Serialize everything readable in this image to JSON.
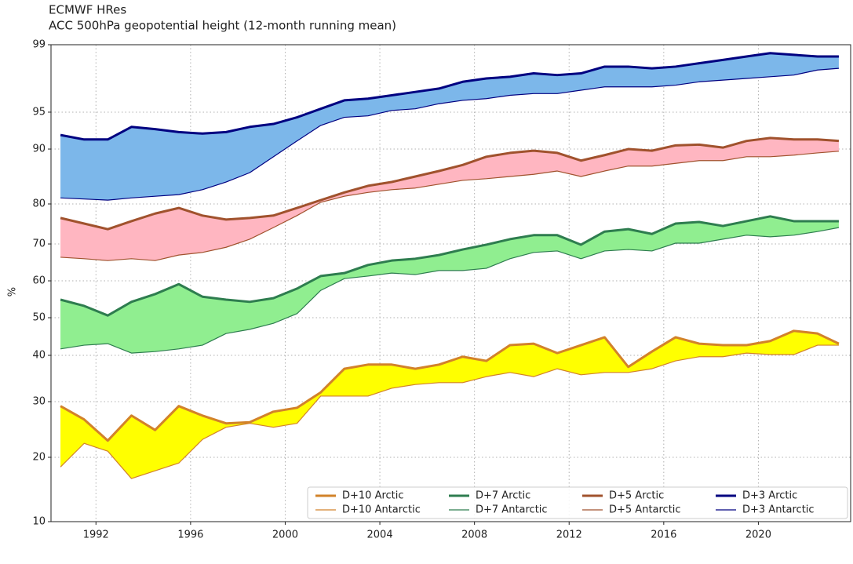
{
  "chart_data": {
    "type": "line",
    "title": "ECMWF HRes",
    "subtitle": "ACC 500hPa geopotential height (12-month running mean)",
    "y_label": "%",
    "x": [
      1990.5,
      1991.5,
      1992.5,
      1993.5,
      1994.5,
      1995.5,
      1996.5,
      1997.5,
      1998.5,
      1999.5,
      2000.5,
      2001.5,
      2002.5,
      2003.5,
      2004.5,
      2005.5,
      2006.5,
      2007.5,
      2008.5,
      2009.5,
      2010.5,
      2011.5,
      2012.5,
      2013.5,
      2014.5,
      2015.5,
      2016.5,
      2017.5,
      2018.5,
      2019.5,
      2020.5,
      2021.5,
      2022.5,
      2023.4
    ],
    "xlim": [
      1990.1,
      2023.9
    ],
    "xticks": [
      1992,
      1996,
      2000,
      2004,
      2008,
      2012,
      2016,
      2020
    ],
    "ylim": [
      10,
      99
    ],
    "yticks": [
      10,
      20,
      30,
      40,
      50,
      60,
      70,
      80,
      90,
      95,
      99
    ],
    "yscale": "nonlinear",
    "grid": true,
    "legend": "lower right",
    "series": [
      {
        "name": "D+10 Arctic",
        "color": "#d2822a",
        "fill": "#ffff00",
        "width": 3,
        "values": [
          29.2,
          26.8,
          23.0,
          27.5,
          24.9,
          29.2,
          27.5,
          26.1,
          26.3,
          28.2,
          28.9,
          32.0,
          37.1,
          38.0,
          38.0,
          37.1,
          38.0,
          39.7,
          38.8,
          42.7,
          43.1,
          40.6,
          42.7,
          44.8,
          37.5,
          41.0,
          44.8,
          43.1,
          42.7,
          42.7,
          43.8,
          46.5,
          45.8,
          43.1
        ]
      },
      {
        "name": "D+10 Antarctic",
        "color": "#d2822a",
        "width": 1.2,
        "values": [
          18.5,
          22.5,
          21.1,
          16.7,
          17.9,
          19.1,
          23.2,
          25.4,
          26.1,
          25.4,
          26.1,
          31.2,
          31.2,
          31.2,
          32.9,
          33.7,
          34.1,
          34.1,
          35.4,
          36.3,
          35.4,
          37.1,
          35.8,
          36.3,
          36.3,
          37.1,
          38.8,
          39.7,
          39.7,
          40.6,
          40.2,
          40.2,
          42.7,
          42.7
        ]
      },
      {
        "name": "D+7 Arctic",
        "color": "#2e7d4f",
        "fill": "#90ee90",
        "width": 3,
        "values": [
          54.9,
          53.2,
          50.6,
          54.3,
          56.4,
          59.1,
          55.7,
          54.9,
          54.3,
          55.3,
          57.9,
          61.3,
          62.1,
          64.3,
          65.5,
          66.0,
          67.0,
          68.5,
          69.8,
          71.2,
          72.2,
          72.2,
          69.8,
          73.1,
          73.7,
          72.5,
          75.1,
          75.5,
          74.5,
          75.7,
          76.9,
          75.7,
          75.7,
          75.7
        ]
      },
      {
        "name": "D+7 Antarctic",
        "color": "#2e7d4f",
        "width": 1.2,
        "values": [
          41.7,
          42.7,
          43.1,
          40.6,
          41.0,
          41.7,
          42.7,
          45.8,
          46.9,
          48.5,
          51.1,
          57.4,
          60.6,
          61.3,
          62.1,
          61.7,
          62.8,
          62.8,
          63.4,
          66.0,
          67.7,
          68.1,
          66.0,
          68.1,
          68.5,
          68.1,
          70.2,
          70.2,
          71.2,
          72.2,
          71.8,
          72.2,
          73.1,
          74.1
        ]
      },
      {
        "name": "D+5 Arctic",
        "color": "#a0522d",
        "fill": "#ffb6c1",
        "width": 3,
        "values": [
          76.5,
          75.1,
          73.7,
          75.7,
          77.6,
          79.0,
          77.1,
          76.1,
          76.5,
          77.1,
          79.0,
          80.7,
          82.1,
          83.3,
          84.0,
          85.0,
          86.0,
          87.1,
          88.6,
          89.3,
          89.7,
          89.3,
          87.9,
          88.9,
          90.0,
          89.7,
          90.5,
          90.6,
          90.2,
          91.1,
          91.5,
          91.3,
          91.3,
          91.1
        ]
      },
      {
        "name": "D+5 Antarctic",
        "color": "#a0522d",
        "width": 1.2,
        "values": [
          66.4,
          66.0,
          65.5,
          66.0,
          65.5,
          67.0,
          67.7,
          69.1,
          71.2,
          74.1,
          77.1,
          80.3,
          81.4,
          82.1,
          82.6,
          82.9,
          83.6,
          84.3,
          84.6,
          85.0,
          85.4,
          86.0,
          85.0,
          86.0,
          86.9,
          86.9,
          87.4,
          87.9,
          87.9,
          88.6,
          88.6,
          88.9,
          89.3,
          89.6
        ]
      },
      {
        "name": "D+3 Arctic",
        "color": "#000080",
        "fill": "#7cb7ea",
        "width": 3,
        "values": [
          91.9,
          91.3,
          91.3,
          93.0,
          92.7,
          92.3,
          92.1,
          92.3,
          93.0,
          93.4,
          94.3,
          95.2,
          95.7,
          95.8,
          96.0,
          96.2,
          96.4,
          96.8,
          97.0,
          97.1,
          97.3,
          97.2,
          97.3,
          97.7,
          97.7,
          97.6,
          97.7,
          97.9,
          98.1,
          98.3,
          98.5,
          98.4,
          98.3,
          98.3
        ]
      },
      {
        "name": "D+3 Antarctic",
        "color": "#000080",
        "width": 1.2,
        "values": [
          81.1,
          80.9,
          80.7,
          81.1,
          81.4,
          81.7,
          82.6,
          84.0,
          85.7,
          88.6,
          91.1,
          93.2,
          94.3,
          94.5,
          95.1,
          95.2,
          95.5,
          95.7,
          95.8,
          96.0,
          96.1,
          96.1,
          96.3,
          96.5,
          96.5,
          96.5,
          96.6,
          96.8,
          96.9,
          97.0,
          97.1,
          97.2,
          97.5,
          97.6
        ]
      }
    ]
  }
}
